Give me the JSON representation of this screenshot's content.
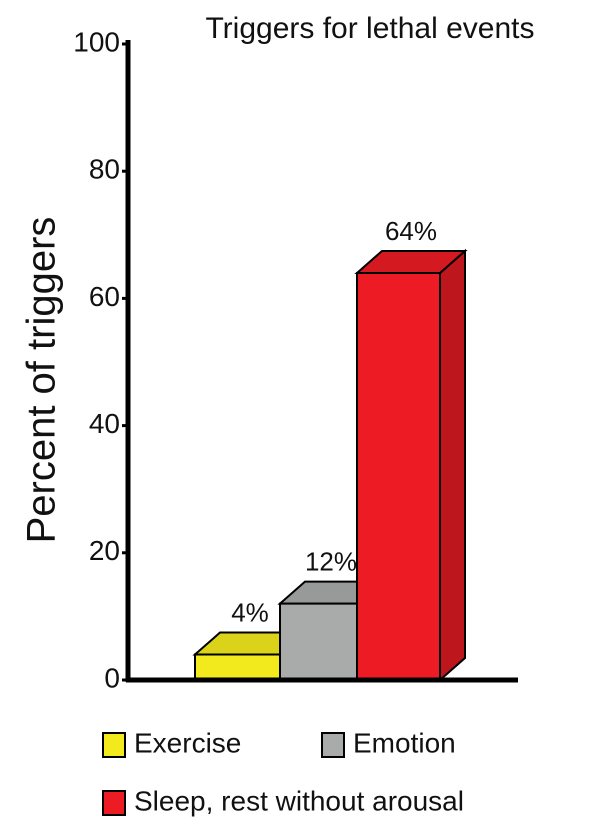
{
  "chart_data": {
    "type": "bar3d",
    "title": "Triggers for lethal events",
    "y_label": "Percent of triggers",
    "categories": [
      "Exercise",
      "Emotion",
      "Sleep, rest without arousal"
    ],
    "values": [
      4,
      12,
      64
    ],
    "value_labels": [
      "4%",
      "12%",
      "64%"
    ],
    "colors": [
      "#f2ea1c",
      "#a9abab",
      "#ed1c24"
    ],
    "ylim": [
      0,
      100
    ],
    "yticks": [
      0,
      20,
      40,
      60,
      80,
      100
    ]
  }
}
